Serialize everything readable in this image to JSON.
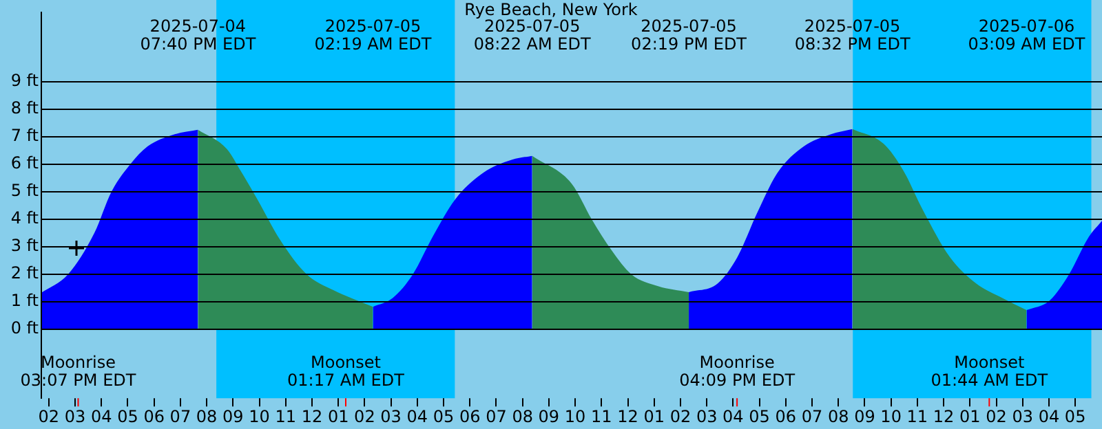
{
  "chart_data": {
    "type": "area",
    "title": "Rye Beach, New York",
    "xlim": [
      "2025-07-04T13:43",
      "2025-07-06T06:01"
    ],
    "ylim": [
      -2.5,
      11.5
    ],
    "xticks": [
      {
        "value": "2025-07-04T14:00",
        "label": "02"
      },
      {
        "value": "2025-07-04T15:00",
        "label": "03"
      },
      {
        "value": "2025-07-04T16:00",
        "label": "04"
      },
      {
        "value": "2025-07-04T17:00",
        "label": "05"
      },
      {
        "value": "2025-07-04T18:00",
        "label": "06"
      },
      {
        "value": "2025-07-04T19:00",
        "label": "07"
      },
      {
        "value": "2025-07-04T20:00",
        "label": "08"
      },
      {
        "value": "2025-07-04T21:00",
        "label": "09"
      },
      {
        "value": "2025-07-04T22:00",
        "label": "10"
      },
      {
        "value": "2025-07-04T23:00",
        "label": "11"
      },
      {
        "value": "2025-07-05T00:00",
        "label": "12"
      },
      {
        "value": "2025-07-05T01:00",
        "label": "01"
      },
      {
        "value": "2025-07-05T02:00",
        "label": "02"
      },
      {
        "value": "2025-07-05T03:00",
        "label": "03"
      },
      {
        "value": "2025-07-05T04:00",
        "label": "04"
      },
      {
        "value": "2025-07-05T05:00",
        "label": "05"
      },
      {
        "value": "2025-07-05T06:00",
        "label": "06"
      },
      {
        "value": "2025-07-05T07:00",
        "label": "07"
      },
      {
        "value": "2025-07-05T08:00",
        "label": "08"
      },
      {
        "value": "2025-07-05T09:00",
        "label": "09"
      },
      {
        "value": "2025-07-05T10:00",
        "label": "10"
      },
      {
        "value": "2025-07-05T11:00",
        "label": "11"
      },
      {
        "value": "2025-07-05T12:00",
        "label": "12"
      },
      {
        "value": "2025-07-05T13:00",
        "label": "01"
      },
      {
        "value": "2025-07-05T14:00",
        "label": "02"
      },
      {
        "value": "2025-07-05T15:00",
        "label": "03"
      },
      {
        "value": "2025-07-05T16:00",
        "label": "04"
      },
      {
        "value": "2025-07-05T17:00",
        "label": "05"
      },
      {
        "value": "2025-07-05T18:00",
        "label": "06"
      },
      {
        "value": "2025-07-05T19:00",
        "label": "07"
      },
      {
        "value": "2025-07-05T20:00",
        "label": "08"
      },
      {
        "value": "2025-07-05T21:00",
        "label": "09"
      },
      {
        "value": "2025-07-05T22:00",
        "label": "10"
      },
      {
        "value": "2025-07-05T23:00",
        "label": "11"
      },
      {
        "value": "2025-07-06T00:00",
        "label": "12"
      },
      {
        "value": "2025-07-06T01:00",
        "label": "01"
      },
      {
        "value": "2025-07-06T02:00",
        "label": "02"
      },
      {
        "value": "2025-07-06T03:00",
        "label": "03"
      },
      {
        "value": "2025-07-06T04:00",
        "label": "04"
      },
      {
        "value": "2025-07-06T05:00",
        "label": "05"
      }
    ],
    "yticks": [
      {
        "value": 0,
        "label": "0 ft"
      },
      {
        "value": 1,
        "label": "1 ft"
      },
      {
        "value": 2,
        "label": "2 ft"
      },
      {
        "value": 3,
        "label": "3 ft"
      },
      {
        "value": 4,
        "label": "4 ft"
      },
      {
        "value": 5,
        "label": "5 ft"
      },
      {
        "value": 6,
        "label": "6 ft"
      },
      {
        "value": 7,
        "label": "7 ft"
      },
      {
        "value": 8,
        "label": "8 ft"
      },
      {
        "value": 9,
        "label": "9 ft"
      }
    ],
    "grid": "y",
    "legend": false,
    "series": [
      {
        "color": "#0000ff",
        "x": [
          "2025-07-04T13:43",
          "2025-07-04T14:44",
          "2025-07-04T15:44",
          "2025-07-04T16:23",
          "2025-07-04T17:06",
          "2025-07-04T17:45",
          "2025-07-04T18:46",
          "2025-07-04T19:40"
        ],
        "values": [
          1.33,
          2.0,
          3.5,
          5.0,
          6.0,
          6.64,
          7.08,
          7.25
        ]
      },
      {
        "color": "#2e8b57",
        "x": [
          "2025-07-04T19:40",
          "2025-07-04T20:46",
          "2025-07-04T21:17",
          "2025-07-04T21:56",
          "2025-07-04T22:47",
          "2025-07-04T23:48",
          "2025-07-05T00:48",
          "2025-07-05T02:19"
        ],
        "values": [
          7.25,
          6.55,
          5.77,
          4.71,
          3.26,
          2.0,
          1.43,
          0.82
        ]
      },
      {
        "color": "#0000ff",
        "x": [
          "2025-07-05T02:19",
          "2025-07-05T03:04",
          "2025-07-05T03:50",
          "2025-07-05T04:35",
          "2025-07-05T05:26",
          "2025-07-05T06:30",
          "2025-07-05T07:36",
          "2025-07-05T08:22"
        ],
        "values": [
          0.82,
          1.14,
          2.0,
          3.36,
          4.71,
          5.68,
          6.16,
          6.3
        ]
      },
      {
        "color": "#2e8b57",
        "x": [
          "2025-07-05T08:22",
          "2025-07-05T09:52",
          "2025-07-05T10:38",
          "2025-07-05T11:23",
          "2025-07-05T12:08",
          "2025-07-05T13:09",
          "2025-07-05T14:19"
        ],
        "values": [
          6.3,
          5.29,
          3.99,
          2.87,
          2.0,
          1.57,
          1.35
        ]
      },
      {
        "color": "#0000ff",
        "x": [
          "2025-07-05T14:19",
          "2025-07-05T15:25",
          "2025-07-05T16:10",
          "2025-07-05T16:55",
          "2025-07-05T17:41",
          "2025-07-05T18:41",
          "2025-07-05T19:42",
          "2025-07-05T20:32"
        ],
        "values": [
          1.35,
          1.67,
          2.63,
          4.23,
          5.68,
          6.64,
          7.08,
          7.27
        ]
      },
      {
        "color": "#2e8b57",
        "x": [
          "2025-07-05T20:32",
          "2025-07-05T21:43",
          "2025-07-05T22:28",
          "2025-07-05T23:13",
          "2025-07-06T00:14",
          "2025-07-06T01:14",
          "2025-07-06T02:14",
          "2025-07-06T03:09"
        ],
        "values": [
          7.27,
          6.74,
          5.77,
          4.32,
          2.63,
          1.67,
          1.14,
          0.7
        ]
      },
      {
        "color": "#0000ff",
        "x": [
          "2025-07-06T03:09",
          "2025-07-06T04:01",
          "2025-07-06T04:46",
          "2025-07-06T05:31",
          "2025-07-06T06:01"
        ],
        "values": [
          0.7,
          1.04,
          2.0,
          3.36,
          3.94
        ]
      }
    ],
    "bands": [
      {
        "axis": "x",
        "from": "2025-07-04T13:43",
        "to": "2025-07-04T20:22",
        "color": "#87ceeb"
      },
      {
        "axis": "x",
        "from": "2025-07-04T20:22",
        "to": "2025-07-05T05:26",
        "color": "#00bfff"
      },
      {
        "axis": "x",
        "from": "2025-07-05T05:26",
        "to": "2025-07-05T20:33",
        "color": "#87ceeb"
      },
      {
        "axis": "x",
        "from": "2025-07-05T20:33",
        "to": "2025-07-06T05:37",
        "color": "#00bfff"
      },
      {
        "axis": "x",
        "from": "2025-07-06T05:37",
        "to": "2025-07-06T06:01",
        "color": "#87ceeb"
      }
    ],
    "ref_lines": [
      {
        "axis": "x",
        "value": "2025-07-04T15:07",
        "label": "Moonrise\n03:07 PM EDT",
        "color": "#ff0000"
      },
      {
        "axis": "x",
        "value": "2025-07-05T01:17",
        "label": "Moonset\n01:17 AM EDT",
        "color": "#ff0000"
      },
      {
        "axis": "x",
        "value": "2025-07-05T16:09",
        "label": "Moonrise\n04:09 PM EDT",
        "color": "#ff0000"
      },
      {
        "axis": "x",
        "value": "2025-07-06T01:44",
        "label": "Moonset\n01:44 AM EDT",
        "color": "#ff0000"
      }
    ],
    "annotations": [
      "2025-07-04\n07:40 PM EDT",
      "2025-07-05\n02:19 AM EDT",
      "2025-07-05\n08:22 AM EDT",
      "2025-07-05\n02:19 PM EDT",
      "2025-07-05\n08:32 PM EDT",
      "2025-07-06\n03:09 AM EDT"
    ]
  }
}
